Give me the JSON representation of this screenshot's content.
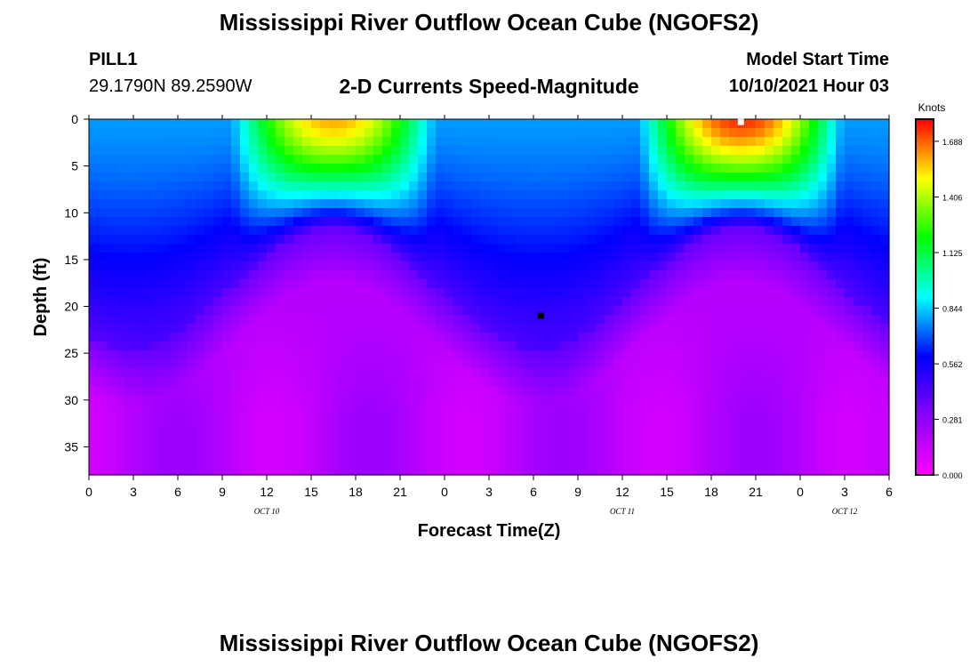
{
  "header": {
    "title": "Mississippi River Outflow Ocean Cube (NGOFS2)",
    "station": "PILL1",
    "coordinates": "29.1790N  89.2590W",
    "subtitle": "2-D Currents Speed-Magnitude",
    "model_start_label": "Model Start Time",
    "model_start_time": "10/10/2021 Hour 03"
  },
  "footer": {
    "title": "Mississippi River Outflow Ocean Cube (NGOFS2)"
  },
  "chart_data": {
    "type": "heatmap",
    "title": "2-D Currents Speed-Magnitude",
    "xlabel": "Forecast Time(Z)",
    "ylabel": "Depth (ft)",
    "x_range_hours": [
      0,
      54
    ],
    "y_range_ft": [
      0,
      38
    ],
    "y_inverted": true,
    "x_tick_labels": [
      "0",
      "3",
      "6",
      "9",
      "12",
      "15",
      "18",
      "21",
      "0",
      "3",
      "6",
      "9",
      "12",
      "15",
      "18",
      "21",
      "0",
      "3",
      "6"
    ],
    "y_tick_values": [
      0,
      5,
      10,
      15,
      20,
      25,
      30,
      35
    ],
    "date_labels": [
      {
        "text": "OCT  10",
        "hour": 12
      },
      {
        "text": "OCT  11",
        "hour": 36
      },
      {
        "text": "OCT  12",
        "hour": 51
      }
    ],
    "colorbar": {
      "label": "Knots",
      "ticks": [
        "0.000",
        "0.281",
        "0.562",
        "0.844",
        "1.125",
        "1.406",
        "1.688"
      ],
      "tick_values": [
        0.0,
        0.281,
        0.562,
        0.844,
        1.125,
        1.406,
        1.688
      ],
      "range": [
        0.0,
        1.8
      ],
      "colors": [
        "#ff00ff",
        "#8800ff",
        "#0000ff",
        "#00ffff",
        "#00ff00",
        "#ffff00",
        "#ff0000"
      ]
    },
    "surface_speed_peaks": [
      {
        "hour": 16.5,
        "speed_knots": 1.6
      },
      {
        "hour": 44,
        "speed_knots": 1.75
      }
    ],
    "markers": [
      {
        "hour": 44,
        "depth_ft": 0.3,
        "color": "#ffffff"
      },
      {
        "hour": 30.5,
        "depth_ft": 21,
        "color": "#000000"
      }
    ]
  }
}
